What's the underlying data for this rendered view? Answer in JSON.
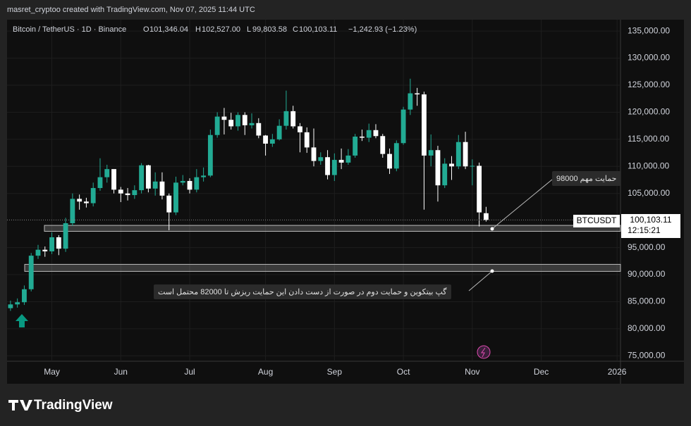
{
  "header": {
    "credit": "masret_cryptoo created with TradingView.com, Nov 07, 2025 11:44 UTC",
    "symbol": "Bitcoin / TetherUS · 1D · Binance",
    "o_label": "O",
    "o_value": "101,346.04",
    "h_label": "H",
    "h_value": "102,527.00",
    "l_label": "L",
    "l_value": "99,803.58",
    "c_label": "C",
    "c_value": "100,103.11",
    "change": "−1,242.93 (−1.23%)"
  },
  "price_tag": {
    "symbol": "BTCUSDT",
    "price": "100,103.11",
    "countdown": "12:15:21"
  },
  "callouts": [
    {
      "text": "حمایت مهم 98000"
    },
    {
      "text": "گپ بیتکوین و حمایت دوم در صورت از دست دادن این حمایت ریزش تا 82000 محتمل است"
    }
  ],
  "footer": {
    "logo": "TradingView"
  },
  "chart_data": {
    "type": "candlestick",
    "up_color": "#22ab94",
    "down_color": "#ffffff",
    "categories": [
      null,
      null,
      null,
      null,
      null,
      null,
      "May",
      null,
      null,
      null,
      null,
      null,
      null,
      null,
      null,
      null,
      "Jun",
      null,
      null,
      null,
      null,
      null,
      null,
      null,
      null,
      null,
      "Jul",
      null,
      null,
      null,
      null,
      null,
      null,
      null,
      null,
      null,
      null,
      "Aug",
      null,
      null,
      null,
      null,
      null,
      null,
      null,
      null,
      null,
      "Sep",
      null,
      null,
      null,
      null,
      null,
      null,
      null,
      null,
      null,
      "Oct",
      null,
      null,
      null,
      null,
      null,
      null,
      null,
      null,
      null,
      "Nov",
      null,
      null,
      null,
      null,
      null,
      null,
      null,
      null,
      null,
      "Dec",
      null,
      null,
      null,
      null,
      null,
      null,
      null,
      null,
      null,
      null,
      "2026"
    ],
    "open": [
      83800,
      84500,
      84900,
      87300,
      93500,
      94600,
      94300,
      96900,
      94800,
      99500,
      104000,
      103500,
      103200,
      106000,
      108000,
      109500,
      105700,
      105000,
      104700,
      105600,
      110200,
      105900,
      107200,
      104600,
      101500,
      107000,
      107300,
      105700,
      108000,
      108300,
      115800,
      119200,
      118600,
      117400,
      119500,
      117600,
      118000,
      115700,
      114200,
      115000,
      117500,
      120200,
      117400,
      116300,
      113500,
      111000,
      111700,
      108400,
      111200,
      110700,
      112000,
      115500,
      115300,
      116700,
      115600,
      112300,
      109600,
      114300,
      120500,
      123500,
      123300,
      112000,
      113000,
      106500,
      110500,
      110000,
      114500,
      110000,
      110100,
      101346.04,
      null,
      null,
      null,
      null,
      null,
      null,
      null,
      null,
      null,
      null,
      null,
      null,
      null,
      null,
      null,
      null,
      null,
      null,
      null
    ],
    "high": [
      85200,
      85600,
      88000,
      94000,
      95500,
      95200,
      97800,
      97300,
      100500,
      105000,
      104800,
      104200,
      107000,
      111500,
      110300,
      108900,
      106200,
      106000,
      106500,
      110600,
      110300,
      108900,
      108900,
      105000,
      108100,
      108400,
      107800,
      109500,
      109800,
      116800,
      120000,
      120800,
      119900,
      120000,
      120000,
      119800,
      118900,
      115800,
      116000,
      118700,
      124000,
      121200,
      118000,
      117200,
      117000,
      112600,
      113000,
      112400,
      113300,
      113200,
      116000,
      116800,
      117900,
      117800,
      116000,
      113300,
      114800,
      121000,
      126200,
      124500,
      123800,
      115900,
      113800,
      111500,
      111900,
      115800,
      116400,
      111300,
      110700,
      102527,
      null,
      null,
      null,
      null,
      null,
      null,
      null,
      null,
      null,
      null,
      null,
      null,
      null,
      null,
      null,
      null,
      null,
      null,
      null
    ],
    "low": [
      83300,
      83900,
      84400,
      86900,
      92900,
      93300,
      93800,
      93600,
      94200,
      99000,
      102000,
      102400,
      102600,
      105500,
      107000,
      105000,
      103400,
      103700,
      104000,
      105000,
      105200,
      104600,
      103900,
      98200,
      101000,
      106500,
      105000,
      105200,
      107200,
      108000,
      115300,
      115900,
      116800,
      116600,
      115800,
      117000,
      115200,
      112000,
      113600,
      114800,
      116800,
      117000,
      112600,
      112500,
      110000,
      110300,
      107600,
      107300,
      109500,
      110300,
      111600,
      114700,
      114500,
      115200,
      111600,
      108600,
      109100,
      114000,
      119500,
      121200,
      102000,
      110000,
      103500,
      106000,
      107500,
      109500,
      109500,
      106500,
      98900,
      99803.58,
      null,
      null,
      null,
      null,
      null,
      null,
      null,
      null,
      null,
      null,
      null,
      null,
      null,
      null,
      null,
      null,
      null,
      null,
      null
    ],
    "close": [
      84500,
      84900,
      87300,
      93500,
      94600,
      94300,
      96900,
      94800,
      99500,
      104000,
      103500,
      103200,
      106000,
      108000,
      109500,
      105700,
      105000,
      104700,
      105600,
      110200,
      105900,
      107200,
      104600,
      101500,
      107000,
      107300,
      105700,
      108000,
      108300,
      115800,
      119200,
      118600,
      117400,
      119500,
      117600,
      118000,
      115700,
      114200,
      115000,
      117500,
      120200,
      117400,
      116300,
      113500,
      111000,
      111700,
      108400,
      111200,
      110700,
      112000,
      115500,
      115300,
      116700,
      115600,
      112300,
      109600,
      114300,
      120500,
      123500,
      123300,
      112000,
      113000,
      106500,
      110500,
      110000,
      114500,
      110000,
      110100,
      101500,
      100103.11,
      null,
      null,
      null,
      null,
      null,
      null,
      null,
      null,
      null,
      null,
      null,
      null,
      null,
      null,
      null,
      null,
      null,
      null,
      null
    ],
    "zones": [
      {
        "low": 98000,
        "high": 99100
      },
      {
        "low": 90600,
        "high": 91900
      }
    ],
    "ylim": [
      74000,
      137100
    ],
    "yticks": [
      {
        "value": 75000,
        "label": "75,000.00"
      },
      {
        "value": 80000,
        "label": "80,000.00"
      },
      {
        "value": 85000,
        "label": "85,000.00"
      },
      {
        "value": 90000,
        "label": "90,000.00"
      },
      {
        "value": 95000,
        "label": "95,000.00"
      },
      {
        "value": 105000,
        "label": "105,000.00"
      },
      {
        "value": 110000,
        "label": "110,000.00"
      },
      {
        "value": 115000,
        "label": "115,000.00"
      },
      {
        "value": 120000,
        "label": "120,000.00"
      },
      {
        "value": 125000,
        "label": "125,000.00"
      },
      {
        "value": 130000,
        "label": "130,000.00"
      },
      {
        "value": 135000,
        "label": "135,000.00"
      }
    ],
    "grid": true
  }
}
